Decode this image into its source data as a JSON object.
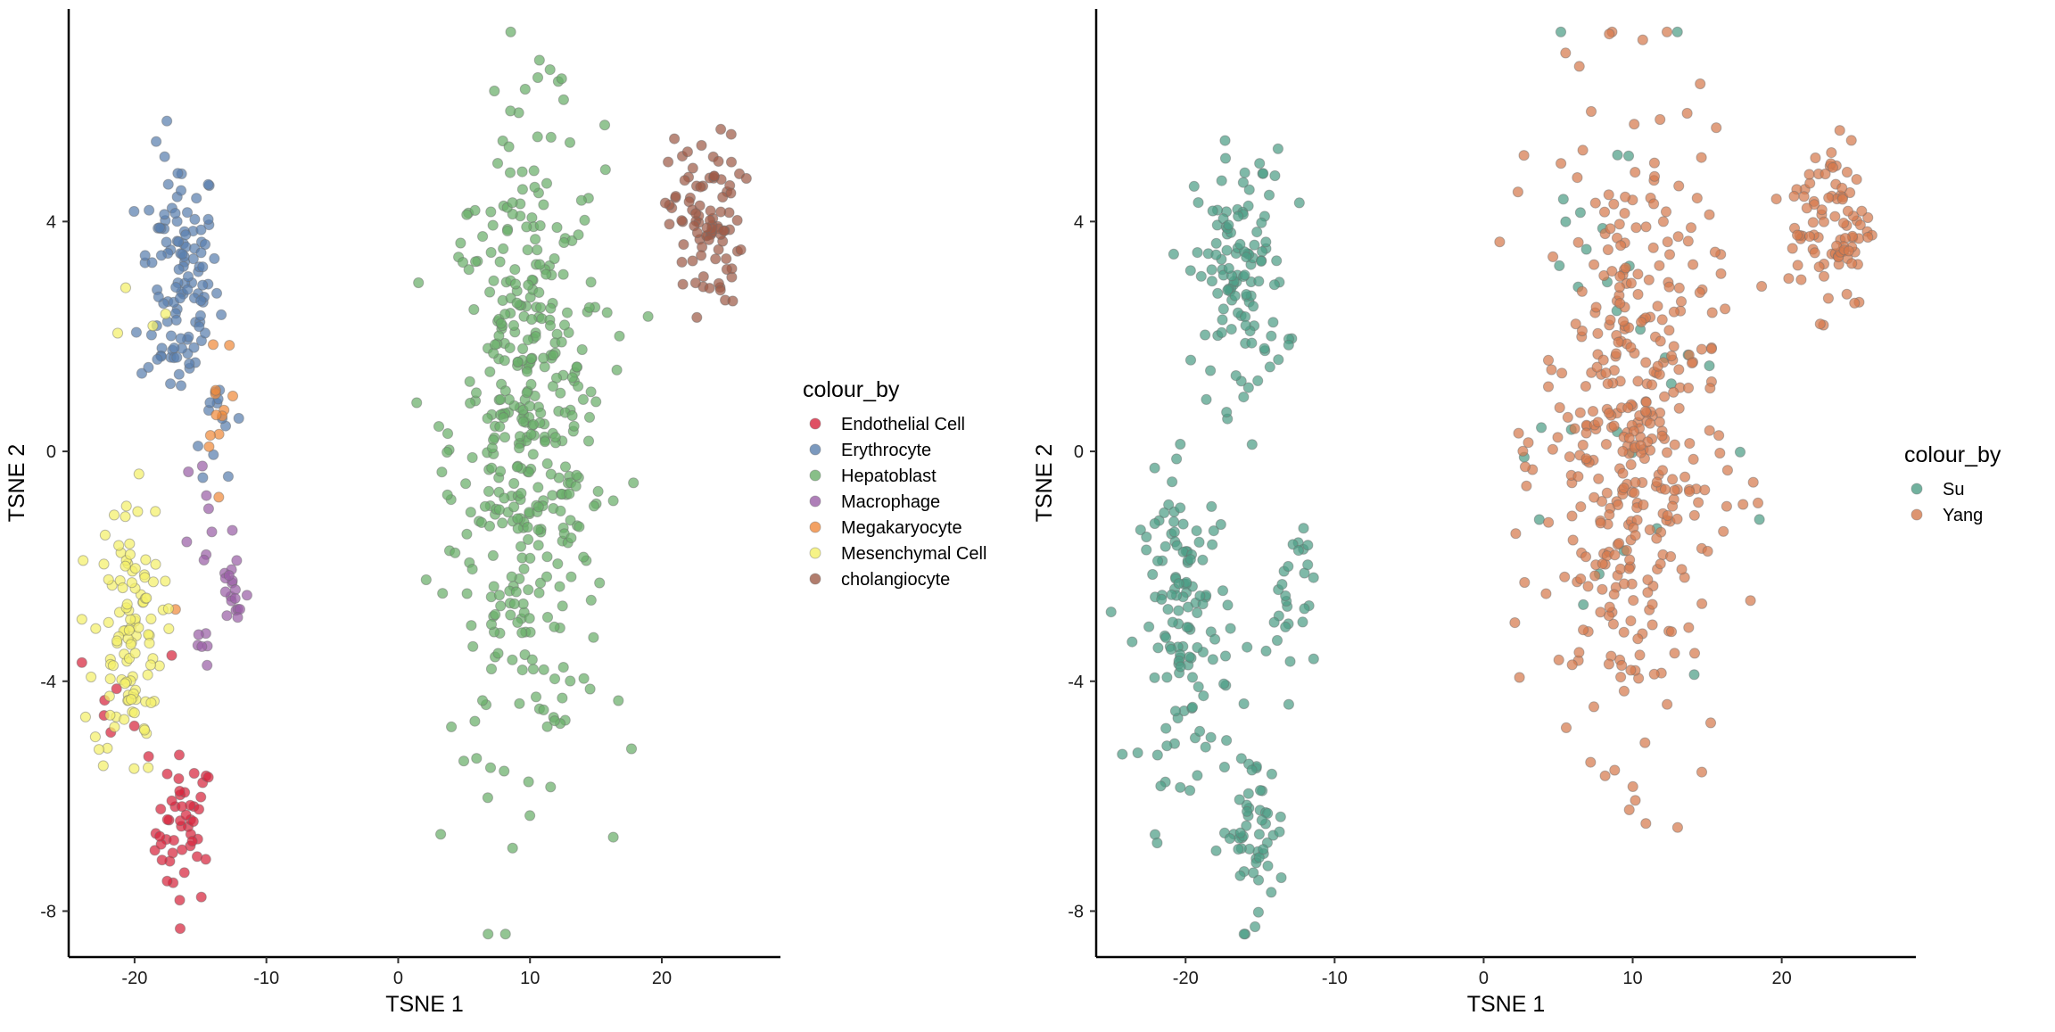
{
  "chart_data": [
    {
      "type": "scatter",
      "xlabel": "TSNE 1",
      "ylabel": "TSNE 2",
      "xlim": [
        -25,
        29
      ],
      "ylim": [
        -8.8,
        7.7
      ],
      "xticks": [
        -20,
        -10,
        0,
        10,
        20
      ],
      "yticks": [
        -8,
        -4,
        0,
        4
      ],
      "grid": false,
      "legend": {
        "title": "colour_by",
        "position": "right"
      },
      "series": [
        {
          "name": "Endothelial Cell",
          "color": "#D7263D",
          "clusters": [
            {
              "cx": -16.2,
              "cy": -6.6,
              "sx": 1.1,
              "sy": 0.65,
              "n": 48
            },
            {
              "cx": -20.5,
              "cy": -4.3,
              "sx": 2.2,
              "sy": 0.5,
              "n": 8
            }
          ]
        },
        {
          "name": "Erythrocyte",
          "color": "#5A7FAE",
          "clusters": [
            {
              "cx": -16.6,
              "cy": 3.0,
              "sx": 1.5,
              "sy": 1.1,
              "n": 115
            },
            {
              "cx": -13.8,
              "cy": 0.6,
              "sx": 1.0,
              "sy": 0.5,
              "n": 14
            }
          ]
        },
        {
          "name": "Hepatoblast",
          "color": "#6AAF6A",
          "clusters": [
            {
              "cx": 9.8,
              "cy": 0.2,
              "sx": 2.9,
              "sy": 2.7,
              "n": 430
            }
          ]
        },
        {
          "name": "Macrophage",
          "color": "#9A5FA6",
          "clusters": [
            {
              "cx": -12.5,
              "cy": -2.5,
              "sx": 0.6,
              "sy": 0.45,
              "n": 18
            },
            {
              "cx": -14.5,
              "cy": -1.0,
              "sx": 0.9,
              "sy": 0.6,
              "n": 9
            },
            {
              "cx": -14.8,
              "cy": -3.5,
              "sx": 0.6,
              "sy": 0.4,
              "n": 6
            }
          ]
        },
        {
          "name": "Megakaryocyte",
          "color": "#F08A3C",
          "clusters": [
            {
              "cx": -13.5,
              "cy": 1.2,
              "sx": 0.6,
              "sy": 0.7,
              "n": 12
            },
            {
              "cx": -17.0,
              "cy": -2.5,
              "sx": 0.3,
              "sy": 0.2,
              "n": 1
            }
          ]
        },
        {
          "name": "Mesenchymal Cell",
          "color": "#F4F069",
          "clusters": [
            {
              "cx": -20.5,
              "cy": -3.2,
              "sx": 1.3,
              "sy": 1.2,
              "n": 110
            },
            {
              "cx": -20.0,
              "cy": 2.0,
              "sx": 1.5,
              "sy": 0.8,
              "n": 4
            }
          ]
        },
        {
          "name": "cholangiocyte",
          "color": "#9E5C48",
          "clusters": [
            {
              "cx": 23.3,
              "cy": 4.0,
              "sx": 1.4,
              "sy": 0.75,
              "n": 92
            }
          ]
        }
      ]
    },
    {
      "type": "scatter",
      "xlabel": "TSNE 1",
      "ylabel": "TSNE 2",
      "xlim": [
        -26,
        29
      ],
      "ylim": [
        -8.8,
        7.7
      ],
      "xticks": [
        -20,
        -10,
        0,
        10,
        20
      ],
      "yticks": [
        -8,
        -4,
        0,
        4
      ],
      "grid": false,
      "legend": {
        "title": "colour_by",
        "position": "right"
      },
      "series": [
        {
          "name": "Su",
          "color": "#4E9E86",
          "clusters": [
            {
              "cx": -16.3,
              "cy": 3.0,
              "sx": 1.5,
              "sy": 1.1,
              "n": 120
            },
            {
              "cx": -15.5,
              "cy": -6.6,
              "sx": 1.1,
              "sy": 0.7,
              "n": 55
            },
            {
              "cx": -20.0,
              "cy": -3.0,
              "sx": 1.5,
              "sy": 1.3,
              "n": 125
            },
            {
              "cx": -13.0,
              "cy": -2.5,
              "sx": 0.8,
              "sy": 0.8,
              "n": 28
            },
            {
              "cx": 9.0,
              "cy": 1.0,
              "sx": 3.5,
              "sy": 3.0,
              "n": 32
            }
          ]
        },
        {
          "name": "Yang",
          "color": "#D57A4E",
          "clusters": [
            {
              "cx": 9.8,
              "cy": 0.2,
              "sx": 2.9,
              "sy": 2.7,
              "n": 400
            },
            {
              "cx": 23.3,
              "cy": 4.0,
              "sx": 1.4,
              "sy": 0.75,
              "n": 92
            }
          ]
        }
      ]
    }
  ]
}
